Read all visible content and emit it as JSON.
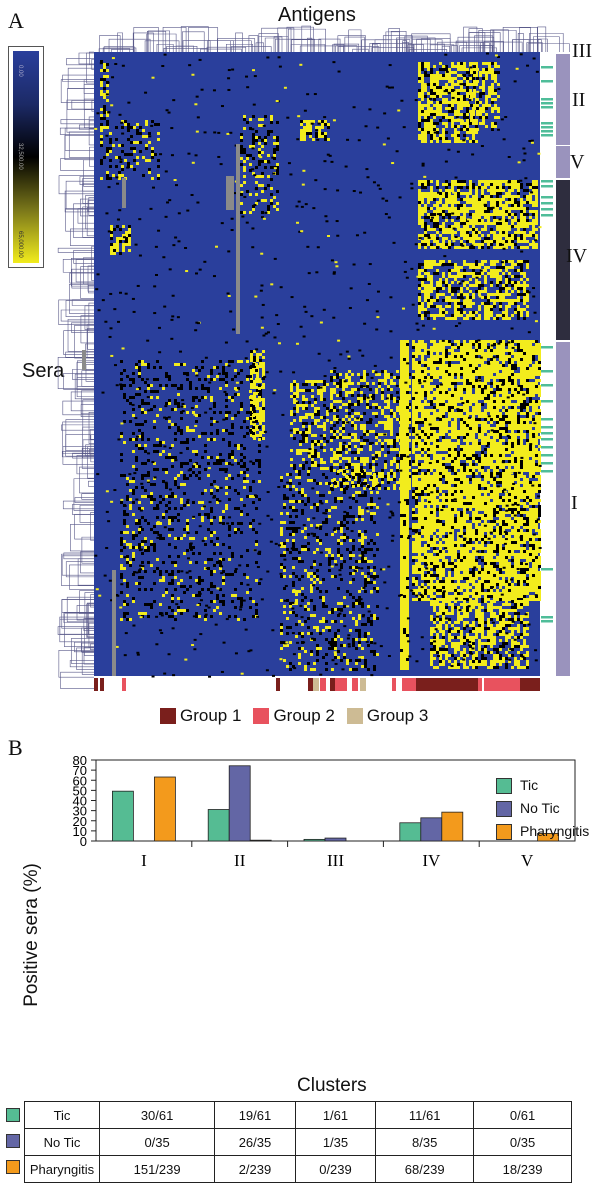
{
  "panel_a": {
    "label": "A",
    "top_title": "Antigens",
    "side_title": "Sera",
    "colorbar_ticks": [
      "0.00",
      "32,500.00",
      "65,000.00"
    ],
    "cluster_labels": [
      "III",
      "II",
      "V",
      "IV",
      "I"
    ],
    "legend": [
      {
        "name": "Group 1",
        "color": "#7a1f1c"
      },
      {
        "name": "Group 2",
        "color": "#e8525e"
      },
      {
        "name": "Group 3",
        "color": "#cdbb94"
      }
    ],
    "colors": {
      "low": "#2a3f9c",
      "mid": "#000000",
      "high": "#f2ec1d",
      "tic_marker": "#4fbd99",
      "cluster_bar": "#9a93bd",
      "cluster_bar_dark": "#2e2d3e"
    }
  },
  "panel_b": {
    "label": "B",
    "ylabel": "Positive sera (%)",
    "xlabel": "Clusters",
    "chart_data": {
      "type": "bar",
      "categories": [
        "I",
        "II",
        "III",
        "IV",
        "V"
      ],
      "series": [
        {
          "name": "Tic",
          "values": [
            49.2,
            31.1,
            1.6,
            18.0,
            0
          ],
          "color": "#55bc93"
        },
        {
          "name": "No Tic",
          "values": [
            0,
            74.3,
            2.9,
            22.9,
            0
          ],
          "color": "#6366a5"
        },
        {
          "name": "Pharyngitis",
          "values": [
            63.2,
            0.8,
            0,
            28.5,
            7.5
          ],
          "color": "#f39a1c"
        }
      ],
      "ylim": [
        0,
        80
      ],
      "yticks": [
        0,
        10,
        20,
        30,
        40,
        50,
        60,
        70,
        80
      ],
      "legend_position": "top-right"
    }
  },
  "table": {
    "rows": [
      {
        "label": "Tic",
        "color": "#55bc93",
        "cells": [
          "30/61",
          "19/61",
          "1/61",
          "11/61",
          "0/61"
        ]
      },
      {
        "label": "No Tic",
        "color": "#6366a5",
        "cells": [
          "0/35",
          "26/35",
          "1/35",
          "8/35",
          "0/35"
        ]
      },
      {
        "label": "Pharyngitis",
        "color": "#f39a1c",
        "cells": [
          "151/239",
          "2/239",
          "0/239",
          "68/239",
          "18/239"
        ]
      }
    ]
  }
}
